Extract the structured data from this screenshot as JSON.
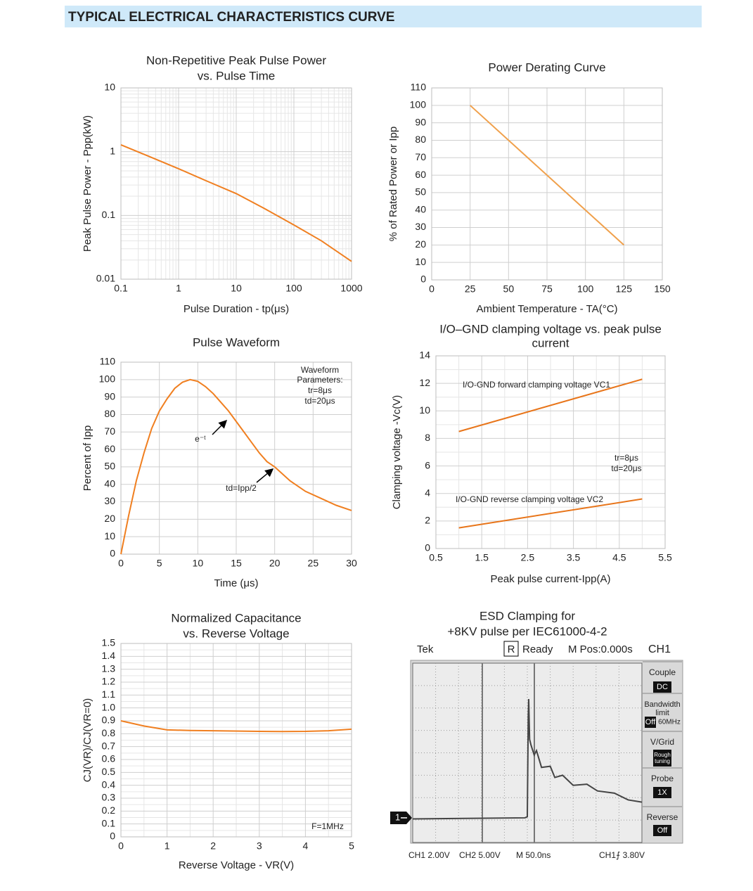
{
  "header": {
    "title": "TYPICAL ELECTRICAL CHARACTERISTICS CURVE"
  },
  "chart_data": [
    {
      "type": "line",
      "title": [
        "Non-Repetitive Peak Pulse Power",
        "vs. Pulse Time"
      ],
      "x_label": "Pulse Duration - tp(μs)",
      "y_label": "Peak Pulse Power - Ppp(kW)",
      "log": true,
      "minor_grid": true,
      "color": "#f07f20",
      "x": [
        0.1,
        0.3,
        1,
        3,
        10,
        30,
        100,
        300,
        1000
      ],
      "values": [
        1.28,
        0.85,
        0.54,
        0.35,
        0.22,
        0.13,
        0.071,
        0.04,
        0.019
      ],
      "xlim": [
        0.1,
        1000
      ],
      "xticks": [
        0.1,
        1,
        10,
        100,
        1000
      ],
      "ylim": [
        0.01,
        10
      ],
      "yticks": [
        0.01,
        0.1,
        1,
        10
      ]
    },
    {
      "type": "line",
      "title": [
        "Power Derating Curve"
      ],
      "x_label": "Ambient Temperature - TA(°C)",
      "y_label": "% of Rated Power or Ipp",
      "color": "#f0a04b",
      "x": [
        25,
        125
      ],
      "values": [
        100,
        20
      ],
      "xlim": [
        0,
        150
      ],
      "xticks": [
        0,
        25,
        50,
        75,
        100,
        125,
        150
      ],
      "ylim": [
        0,
        110
      ],
      "yticks": [
        0,
        10,
        20,
        30,
        40,
        50,
        60,
        70,
        80,
        90,
        100,
        110
      ]
    },
    {
      "type": "line",
      "title": [
        "Pulse Waveform"
      ],
      "x_label": "Time (μs)",
      "y_label": "Percent of Ipp",
      "color": "#f07f20",
      "annotations": [
        "Waveform",
        "Parameters:",
        "tr=8μs",
        "td=20μs",
        "e⁻ᵗ",
        "td=Ipp/2"
      ],
      "x": [
        0,
        1,
        2,
        3,
        4,
        5,
        6,
        7,
        8,
        9,
        10,
        11,
        12,
        13,
        14,
        15,
        16,
        17,
        18,
        19,
        20,
        22,
        24,
        26,
        28,
        30
      ],
      "values": [
        0,
        22,
        42,
        58,
        72,
        82,
        89,
        95,
        98.5,
        100,
        99,
        96,
        92,
        87,
        82,
        76,
        70,
        64,
        58,
        53,
        50,
        42,
        36,
        32,
        28,
        25
      ],
      "xlim": [
        0,
        30
      ],
      "xticks": [
        0,
        5,
        10,
        15,
        20,
        25,
        30
      ],
      "ylim": [
        0,
        110
      ],
      "yticks": [
        0,
        10,
        20,
        30,
        40,
        50,
        60,
        70,
        80,
        90,
        100,
        110
      ]
    },
    {
      "type": "line",
      "title": [
        "I/O–GND clamping voltage vs. peak pulse",
        "current"
      ],
      "x_label": "Peak pulse current-Ipp(A)",
      "y_label": "Clamping voltage -Vc(V)",
      "minor_grid": true,
      "annotations": [
        "tr=8μs",
        "td=20μs"
      ],
      "x": [
        1,
        5
      ],
      "series": [
        {
          "name": "I/O-GND forward clamping voltage VC1",
          "color": "#e8751a",
          "values": [
            8.5,
            12.3
          ]
        },
        {
          "name": "I/O-GND reverse clamping voltage VC2",
          "color": "#e8751a",
          "values": [
            1.5,
            3.6
          ]
        }
      ],
      "xlim": [
        0.5,
        5.5
      ],
      "xticks": [
        0.5,
        1.5,
        2.5,
        3.5,
        4.5,
        5.5
      ],
      "ylim": [
        0,
        14
      ],
      "yticks": [
        0,
        2,
        4,
        6,
        8,
        10,
        12,
        14
      ]
    },
    {
      "type": "line",
      "title": [
        "Normalized Capacitance",
        "vs. Reverse Voltage"
      ],
      "x_label": "Reverse Voltage - VR(V)",
      "y_label": "CJ(VR)/CJ(VR=0)",
      "minor_grid": true,
      "color": "#f07f20",
      "annotations": [
        "F=1MHz"
      ],
      "x": [
        0,
        0.5,
        1,
        1.5,
        2,
        3,
        3.5,
        4,
        4.5,
        5
      ],
      "values": [
        0.9,
        0.86,
        0.83,
        0.825,
        0.823,
        0.818,
        0.817,
        0.818,
        0.823,
        0.835
      ],
      "xlim": [
        0,
        5
      ],
      "xticks": [
        0,
        1,
        2,
        3,
        4,
        5
      ],
      "ylim": [
        0,
        1.5
      ],
      "yticks": [
        0,
        0.1,
        0.2,
        0.3,
        0.4,
        0.5,
        0.6,
        0.7,
        0.8,
        0.9,
        {
          "value": 1,
          "label": "1.0"
        },
        1.1,
        1.2,
        1.3,
        1.4,
        1.5
      ]
    },
    {
      "type": "scope",
      "title": [
        "ESD Clamping for",
        "+8KV pulse per IEC61000-4-2"
      ],
      "header": [
        "Tek",
        "R",
        "Ready",
        "M Pos:0.000s",
        "CH1"
      ],
      "menu": [
        {
          "label": [
            "Couple"
          ],
          "value": [
            "DC"
          ]
        },
        {
          "label": [
            "Bandwidth",
            "limit"
          ],
          "value": [
            "Off",
            "60MHz"
          ]
        },
        {
          "label": [
            "V/Grid"
          ],
          "value": [
            "Rough",
            "tuning"
          ]
        },
        {
          "label": [
            "Probe"
          ],
          "value": [
            "1X"
          ]
        },
        {
          "label": [
            "Reverse"
          ],
          "value": [
            "Off"
          ]
        }
      ],
      "footer": [
        "CH1 2.00V",
        "CH2 5.00V",
        "M 50.0ns",
        "CH1⨍ 3.80V"
      ],
      "ground_marker": "1",
      "color": "#444444",
      "x": [
        0,
        245,
        250,
        252,
        253,
        255,
        258,
        265,
        270,
        281,
        300,
        310,
        327,
        350,
        380,
        403,
        440,
        470,
        500
      ],
      "values": [
        -0.1,
        0,
        0.1,
        9,
        10.6,
        7,
        6.5,
        5.6,
        6,
        4.5,
        4.6,
        3.6,
        3.8,
        2.9,
        3,
        2.4,
        2.2,
        1.6,
        1.4
      ],
      "xlim": [
        0,
        500
      ],
      "ylim": [
        -2.2,
        13.8
      ]
    }
  ]
}
